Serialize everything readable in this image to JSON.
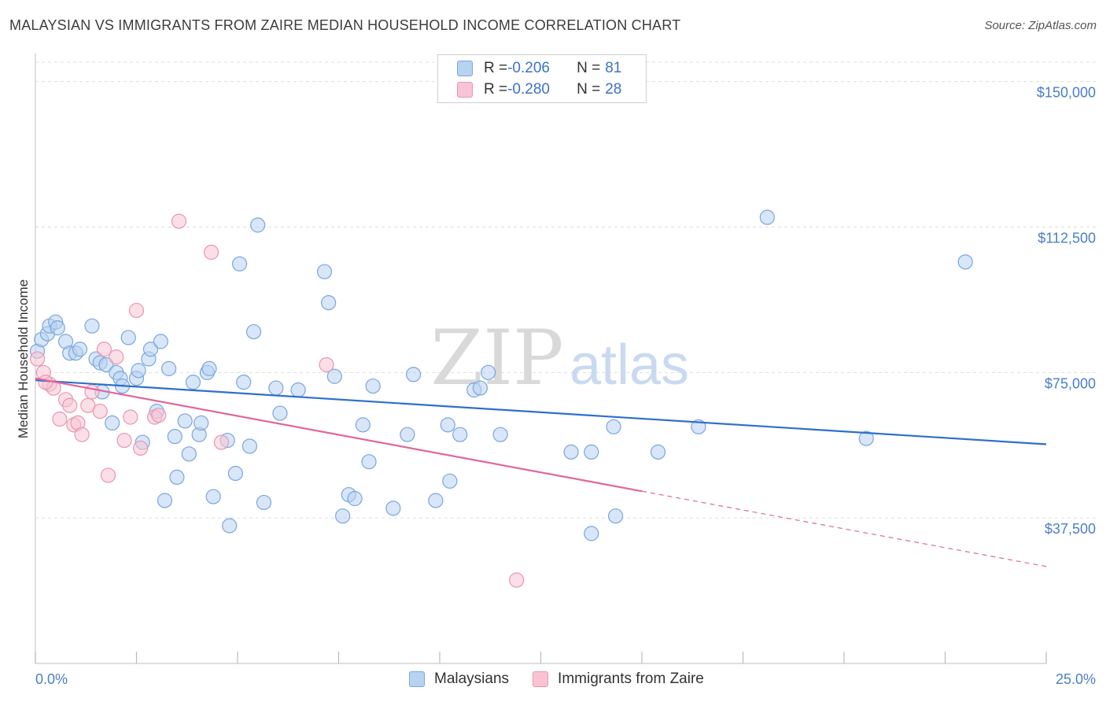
{
  "header": {
    "title": "MALAYSIAN VS IMMIGRANTS FROM ZAIRE MEDIAN HOUSEHOLD INCOME CORRELATION CHART",
    "source": "Source: ZipAtlas.com"
  },
  "watermark": {
    "zip": "ZIP",
    "atlas": "atlas"
  },
  "legend": {
    "rows": [
      {
        "r_label": "R = ",
        "r_value": "-0.206",
        "n_label": "N = ",
        "n_value": "81"
      },
      {
        "r_label": "R = ",
        "r_value": "-0.280",
        "n_label": "N = ",
        "n_value": "28"
      }
    ]
  },
  "bottom_legend": {
    "series1": "Malaysians",
    "series2": "Immigrants from Zaire"
  },
  "colors": {
    "blue_fill": "#b8d2f2",
    "blue_stroke": "#7aa6dc",
    "blue_line": "#2f6fce",
    "pink_fill": "#f8c4d4",
    "pink_stroke": "#ea95b2",
    "pink_line": "#e2669a",
    "tick_text": "#4a7ec8",
    "grid": "#dddddd"
  },
  "chart_data": {
    "type": "scatter",
    "title": "MALAYSIAN VS IMMIGRANTS FROM ZAIRE MEDIAN HOUSEHOLD INCOME CORRELATION CHART",
    "xlabel": "",
    "ylabel": "Median Household Income",
    "xlim": [
      0,
      25
    ],
    "ylim": [
      0,
      155000
    ],
    "x_tick_labels": [
      "0.0%",
      "25.0%"
    ],
    "y_ticks": [
      {
        "value": 37500,
        "label": "$37,500"
      },
      {
        "value": 75000,
        "label": "$75,000"
      },
      {
        "value": 112500,
        "label": "$112,500"
      },
      {
        "value": 150000,
        "label": "$150,000"
      }
    ],
    "series": [
      {
        "name": "Malaysians",
        "r": -0.206,
        "n": 81,
        "trend": {
          "x": [
            0,
            25
          ],
          "y": [
            73000,
            56500
          ],
          "dashed_from": null
        },
        "points": [
          [
            0.05,
            80500
          ],
          [
            0.15,
            83500
          ],
          [
            0.3,
            85000
          ],
          [
            0.35,
            87000
          ],
          [
            0.5,
            88000
          ],
          [
            0.55,
            86500
          ],
          [
            0.75,
            83000
          ],
          [
            0.85,
            80000
          ],
          [
            1.0,
            80000
          ],
          [
            1.1,
            81000
          ],
          [
            1.4,
            87000
          ],
          [
            1.5,
            78500
          ],
          [
            1.6,
            77500
          ],
          [
            1.65,
            70000
          ],
          [
            1.75,
            77000
          ],
          [
            1.9,
            62000
          ],
          [
            2.0,
            75000
          ],
          [
            2.1,
            73500
          ],
          [
            2.15,
            71500
          ],
          [
            2.3,
            84000
          ],
          [
            2.5,
            73500
          ],
          [
            2.55,
            75500
          ],
          [
            2.65,
            57000
          ],
          [
            2.8,
            78500
          ],
          [
            2.85,
            81000
          ],
          [
            3.0,
            65000
          ],
          [
            3.1,
            83000
          ],
          [
            3.2,
            42000
          ],
          [
            3.3,
            76000
          ],
          [
            3.45,
            58500
          ],
          [
            3.5,
            48000
          ],
          [
            3.7,
            62500
          ],
          [
            3.8,
            54000
          ],
          [
            3.9,
            72500
          ],
          [
            4.05,
            59000
          ],
          [
            4.1,
            62000
          ],
          [
            4.25,
            75000
          ],
          [
            4.3,
            76000
          ],
          [
            4.4,
            43000
          ],
          [
            4.75,
            57500
          ],
          [
            4.8,
            35500
          ],
          [
            4.95,
            49000
          ],
          [
            5.05,
            103000
          ],
          [
            5.15,
            72500
          ],
          [
            5.3,
            56000
          ],
          [
            5.4,
            85500
          ],
          [
            5.5,
            113000
          ],
          [
            5.65,
            41500
          ],
          [
            5.95,
            71000
          ],
          [
            6.05,
            64500
          ],
          [
            6.5,
            70500
          ],
          [
            7.15,
            101000
          ],
          [
            7.25,
            93000
          ],
          [
            7.4,
            74000
          ],
          [
            7.6,
            38000
          ],
          [
            7.75,
            43500
          ],
          [
            7.9,
            42500
          ],
          [
            8.1,
            61500
          ],
          [
            8.25,
            52000
          ],
          [
            8.35,
            71500
          ],
          [
            8.85,
            40000
          ],
          [
            9.2,
            59000
          ],
          [
            9.35,
            74500
          ],
          [
            9.9,
            42000
          ],
          [
            10.2,
            61500
          ],
          [
            10.25,
            47000
          ],
          [
            10.5,
            59000
          ],
          [
            10.85,
            70500
          ],
          [
            11.0,
            71000
          ],
          [
            11.2,
            75000
          ],
          [
            11.5,
            59000
          ],
          [
            13.25,
            54500
          ],
          [
            13.75,
            33500
          ],
          [
            13.75,
            54500
          ],
          [
            14.3,
            61000
          ],
          [
            14.35,
            38000
          ],
          [
            15.4,
            54500
          ],
          [
            16.4,
            61000
          ],
          [
            18.1,
            115000
          ],
          [
            20.55,
            58000
          ],
          [
            23.0,
            103500
          ]
        ]
      },
      {
        "name": "Immigrants from Zaire",
        "r": -0.28,
        "n": 28,
        "trend": {
          "x": [
            0,
            25
          ],
          "y": [
            73500,
            25000
          ],
          "dashed_from": 15.0
        },
        "points": [
          [
            0.05,
            78500
          ],
          [
            0.2,
            75000
          ],
          [
            0.35,
            72000
          ],
          [
            0.45,
            71000
          ],
          [
            0.6,
            63000
          ],
          [
            0.75,
            68000
          ],
          [
            0.85,
            66500
          ],
          [
            0.95,
            61500
          ],
          [
            1.05,
            62000
          ],
          [
            1.15,
            59000
          ],
          [
            1.3,
            66500
          ],
          [
            1.4,
            70000
          ],
          [
            1.6,
            65000
          ],
          [
            1.7,
            81000
          ],
          [
            1.8,
            48500
          ],
          [
            2.0,
            79000
          ],
          [
            2.2,
            57500
          ],
          [
            2.35,
            63500
          ],
          [
            2.5,
            91000
          ],
          [
            2.6,
            55500
          ],
          [
            2.95,
            63500
          ],
          [
            3.05,
            64000
          ],
          [
            3.55,
            114000
          ],
          [
            4.35,
            106000
          ],
          [
            4.6,
            57000
          ],
          [
            7.2,
            77000
          ],
          [
            11.9,
            21500
          ],
          [
            0.25,
            72500
          ]
        ]
      }
    ]
  }
}
